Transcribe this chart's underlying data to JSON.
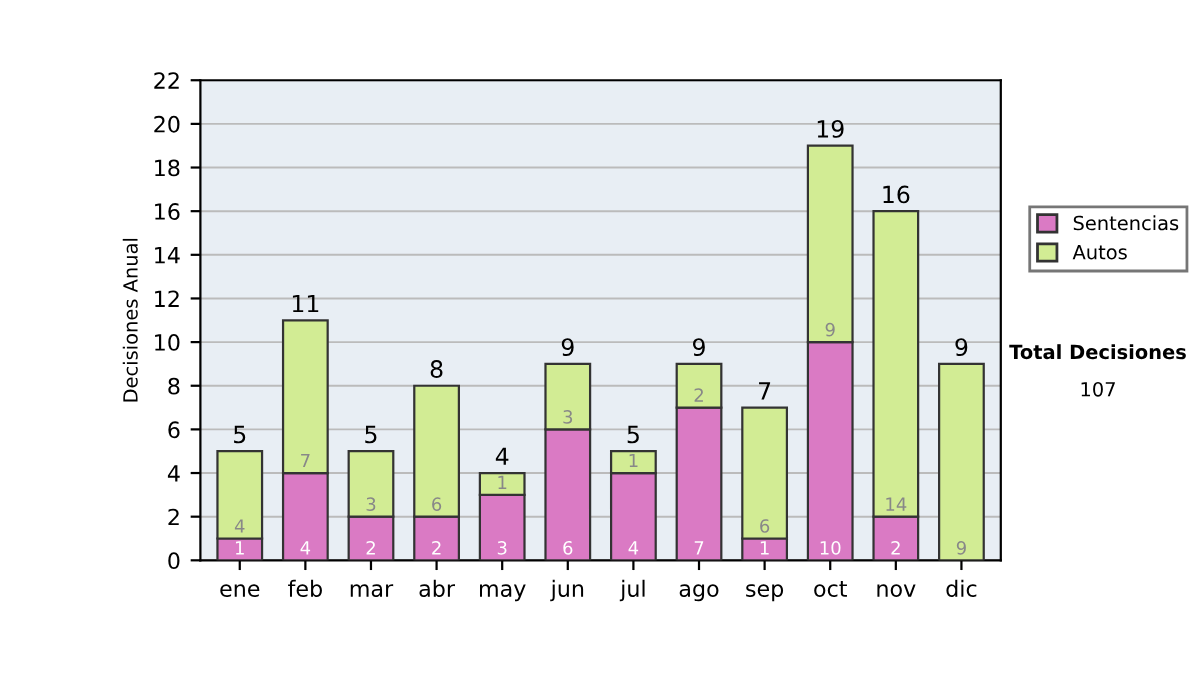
{
  "chart_data": {
    "type": "bar",
    "stacked": true,
    "ylabel": "Decisiones Anual",
    "categories": [
      "ene",
      "feb",
      "mar",
      "abr",
      "may",
      "jun",
      "jul",
      "ago",
      "sep",
      "oct",
      "nov",
      "dic"
    ],
    "series": [
      {
        "name": "Sentencias",
        "color": "#da7ac4",
        "values": [
          1,
          4,
          2,
          2,
          3,
          6,
          4,
          7,
          1,
          10,
          2,
          0
        ],
        "value_labels": [
          "1",
          "4",
          "2",
          "2",
          "3",
          "6",
          "4",
          "7",
          "1",
          "10",
          "2",
          null
        ]
      },
      {
        "name": "Autos",
        "color": "#d2ec94",
        "values": [
          4,
          7,
          3,
          6,
          1,
          3,
          1,
          2,
          6,
          9,
          14,
          9
        ],
        "value_labels": [
          "4",
          "7",
          "3",
          "6",
          "1",
          "3",
          "1",
          "2",
          "6",
          "9",
          "14",
          "9"
        ]
      }
    ],
    "totals": [
      "5",
      "11",
      "5",
      "8",
      "4",
      "9",
      "5",
      "9",
      "7",
      "19",
      "16",
      "9"
    ],
    "ylim": [
      0,
      22
    ],
    "yticks": [
      0,
      2,
      4,
      6,
      8,
      10,
      12,
      14,
      16,
      18,
      20,
      22
    ],
    "grid": "y",
    "legend": "right",
    "annotations": [
      "Total Decisiones",
      "107"
    ]
  }
}
